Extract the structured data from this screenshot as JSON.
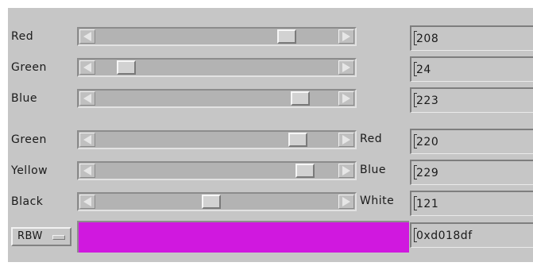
{
  "colors": {
    "swatch": "#d018df"
  },
  "rgb_sliders": [
    {
      "name": "red",
      "label": "Red",
      "value_text": "208",
      "level": 208,
      "max": 255
    },
    {
      "name": "green",
      "label": "Green",
      "value_text": "24",
      "level": 24,
      "max": 255
    },
    {
      "name": "blue",
      "label": "Blue",
      "value_text": "223",
      "level": 223,
      "max": 255
    }
  ],
  "cmyk_sliders": [
    {
      "name": "green-red",
      "left_label": "Green",
      "right_label": "Red",
      "value_text": "220",
      "level": 220,
      "max": 255
    },
    {
      "name": "yellow-blue",
      "left_label": "Yellow",
      "right_label": "Blue",
      "value_text": "229",
      "level": 229,
      "max": 255
    },
    {
      "name": "black-white",
      "left_label": "Black",
      "right_label": "White",
      "value_text": "121",
      "level": 121,
      "max": 255
    }
  ],
  "mode_button": {
    "label": "RBW"
  },
  "hex_field": {
    "value": "0xd018df"
  },
  "icons": [
    "scroll-left-arrow-icon",
    "scroll-right-arrow-icon",
    "option-menu-indicator-icon"
  ]
}
